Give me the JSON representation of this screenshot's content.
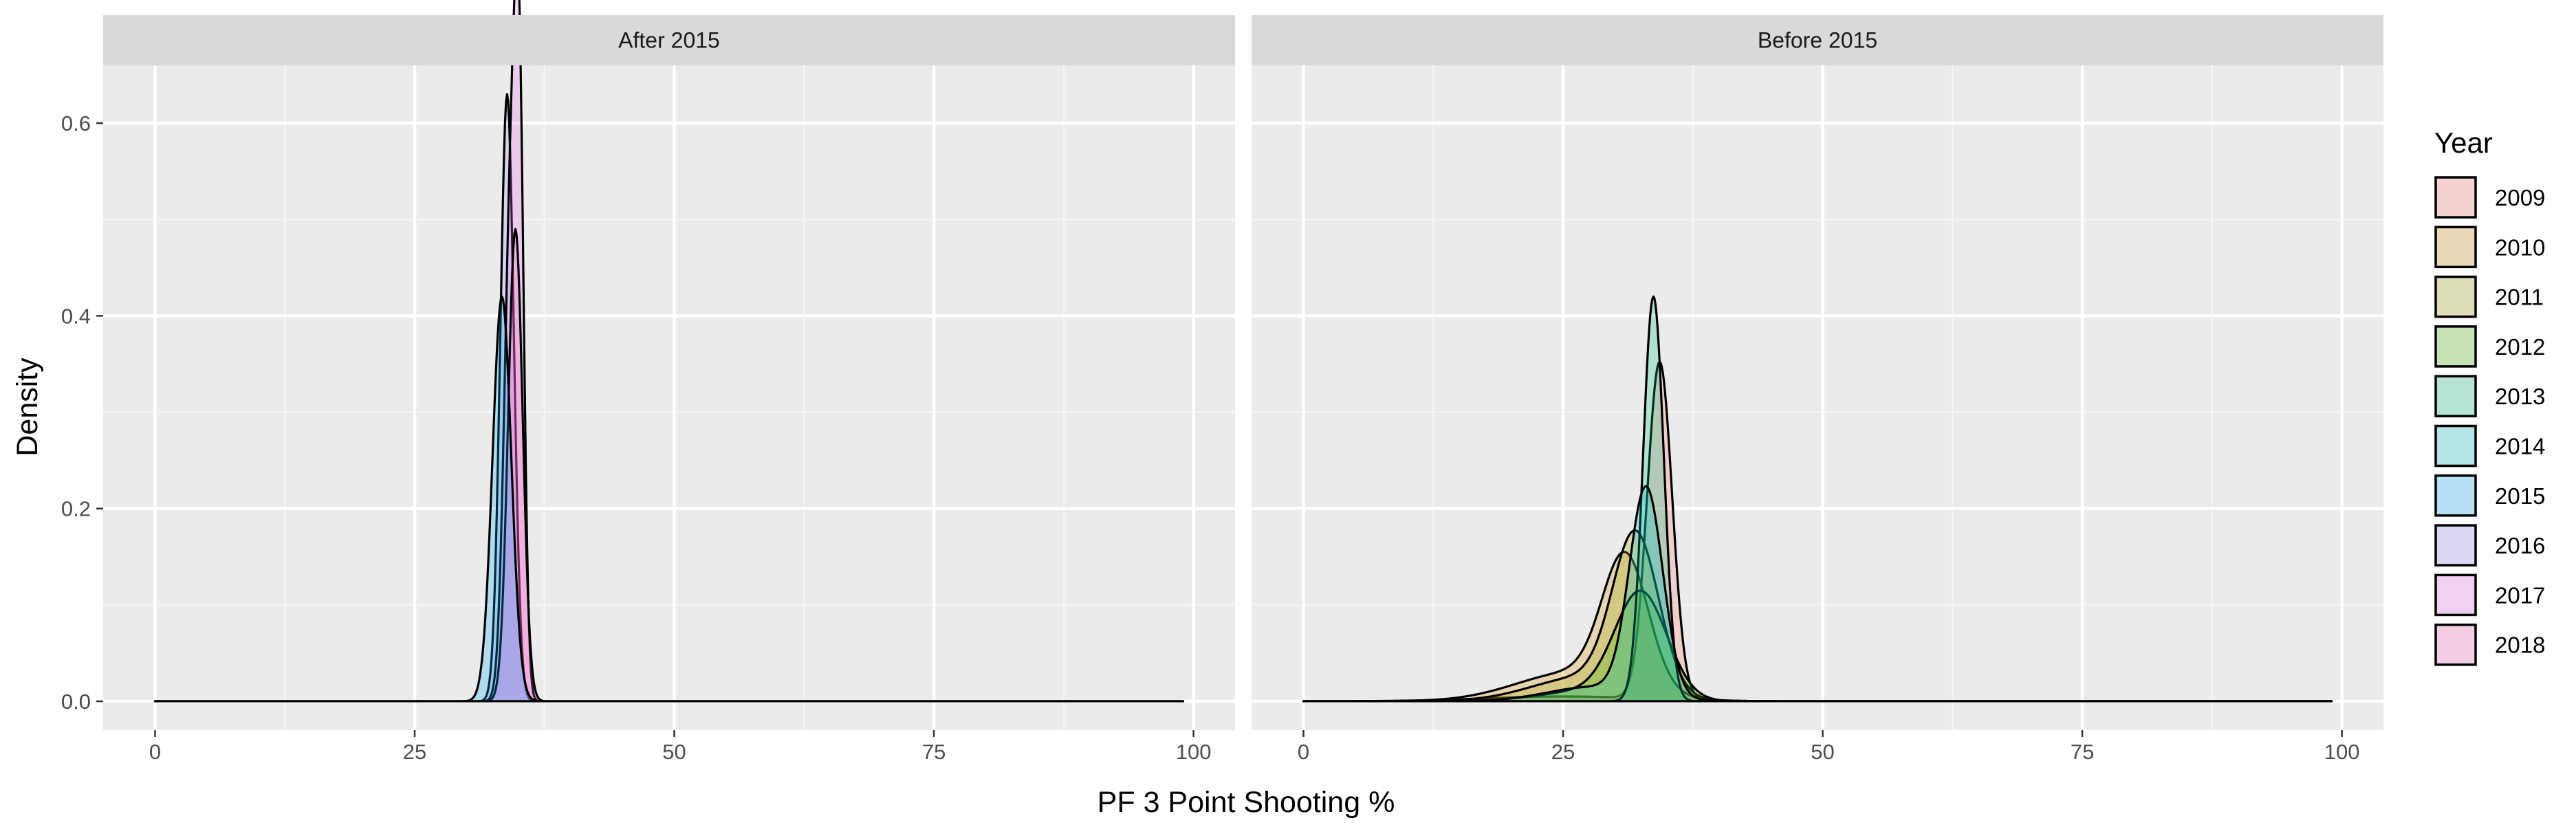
{
  "chart_data": {
    "type": "area",
    "title": "",
    "xlabel": "PF 3 Point Shooting %",
    "ylabel": "Density",
    "xlim": [
      -5,
      104
    ],
    "ylim": [
      -0.03,
      0.66
    ],
    "x_ticks": [
      0,
      25,
      50,
      75,
      100
    ],
    "y_ticks": [
      0.0,
      0.2,
      0.4,
      0.6
    ],
    "y_tick_labels": [
      "0.0",
      "0.2",
      "0.4",
      "0.6"
    ],
    "grid": true,
    "legend": {
      "title": "Year",
      "position": "right"
    },
    "years": [
      "2009",
      "2010",
      "2011",
      "2012",
      "2013",
      "2014",
      "2015",
      "2016",
      "2017",
      "2018"
    ],
    "colors": [
      "#F8766D",
      "#D89000",
      "#A3A500",
      "#39B600",
      "#00BF7D",
      "#00BFC4",
      "#00B0F6",
      "#9590FF",
      "#E76BF3",
      "#FF62BC"
    ],
    "x_range": [
      0,
      99
    ],
    "panels": [
      {
        "strip": "After 2015",
        "series": [
          {
            "name": "2016",
            "peaks": [
              {
                "mu": 33.9,
                "sd": 0.65,
                "h": 0.63
              }
            ]
          },
          {
            "name": "2017",
            "peaks": [
              {
                "mu": 34.3,
                "sd": 0.65,
                "h": 0.53
              },
              {
                "mu": 35.1,
                "sd": 0.45,
                "h": 0.47
              }
            ]
          },
          {
            "name": "2018",
            "peaks": [
              {
                "mu": 34.7,
                "sd": 0.7,
                "h": 0.49
              }
            ]
          },
          {
            "name": "2015",
            "peaks": [
              {
                "mu": 33.4,
                "sd": 0.9,
                "h": 0.42
              }
            ]
          }
        ]
      },
      {
        "strip": "Before 2015",
        "series": [
          {
            "name": "2009",
            "peaks": [
              {
                "mu": 34.3,
                "sd": 1.2,
                "h": 0.35
              },
              {
                "mu": 25.0,
                "sd": 7.5,
                "h": 0.005
              }
            ]
          },
          {
            "name": "2010",
            "peaks": [
              {
                "mu": 31.0,
                "sd": 2.2,
                "h": 0.135
              },
              {
                "mu": 26.0,
                "sd": 5.5,
                "h": 0.03
              }
            ]
          },
          {
            "name": "2011",
            "peaks": [
              {
                "mu": 32.0,
                "sd": 2.2,
                "h": 0.162
              },
              {
                "mu": 27.0,
                "sd": 5.0,
                "h": 0.025
              }
            ]
          },
          {
            "name": "2012",
            "peaks": [
              {
                "mu": 32.5,
                "sd": 2.5,
                "h": 0.11
              },
              {
                "mu": 27.0,
                "sd": 4.5,
                "h": 0.01
              }
            ]
          },
          {
            "name": "2013",
            "peaks": [
              {
                "mu": 33.7,
                "sd": 1.0,
                "h": 0.42
              }
            ]
          },
          {
            "name": "2014",
            "peaks": [
              {
                "mu": 33.0,
                "sd": 1.6,
                "h": 0.215
              },
              {
                "mu": 28.0,
                "sd": 4.5,
                "h": 0.015
              }
            ]
          }
        ]
      }
    ]
  }
}
